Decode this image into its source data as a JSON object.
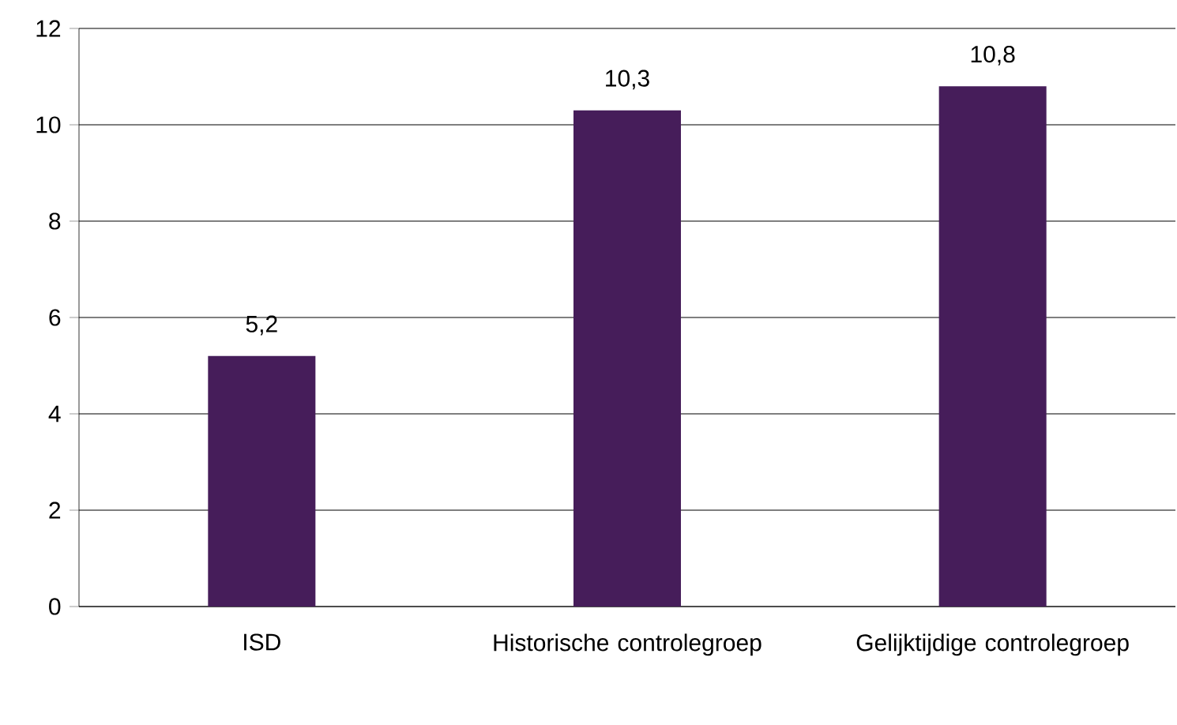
{
  "chart_data": {
    "type": "bar",
    "categories": [
      "ISD",
      "Historische controlegroep",
      "Gelijktijdige controlegroep"
    ],
    "values": [
      5.2,
      10.3,
      10.8
    ],
    "value_labels": [
      "5,2",
      "10,3",
      "10,8"
    ],
    "color": "#461d5a",
    "ylim": [
      0,
      12
    ],
    "yticks": [
      0,
      2,
      4,
      6,
      8,
      10,
      12
    ],
    "grid": "y"
  }
}
